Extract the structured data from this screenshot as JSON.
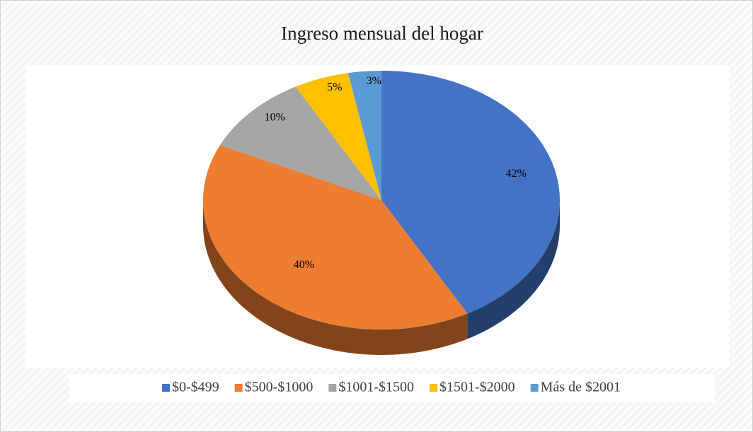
{
  "chart_data": {
    "type": "pie",
    "title": "Ingreso mensual del hogar",
    "categories": [
      "$0-$499",
      "$500-$1000",
      "$1001-$1500",
      "$1501-$2000",
      "Más de $2001"
    ],
    "values": [
      42,
      40,
      10,
      5,
      3
    ],
    "value_labels": [
      "42%",
      "40%",
      "10%",
      "5%",
      "3%"
    ],
    "colors": [
      "#4472c4",
      "#ed7d31",
      "#a5a5a5",
      "#ffc000",
      "#5b9bd5"
    ],
    "legend": "bottom"
  }
}
